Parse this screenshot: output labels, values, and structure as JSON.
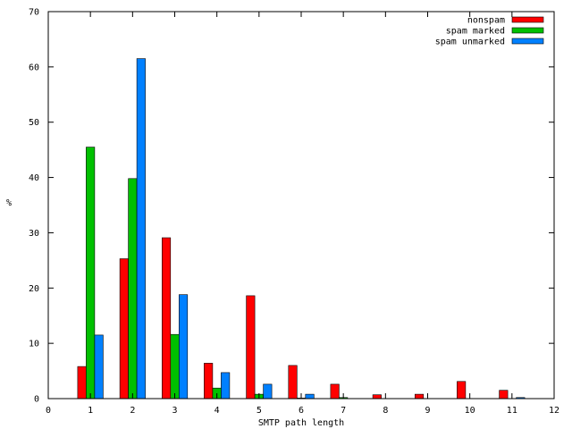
{
  "chart_data": {
    "type": "bar",
    "xlabel": "SMTP path length",
    "ylabel": "%",
    "xlim": [
      0,
      12
    ],
    "ylim": [
      0,
      70
    ],
    "xticks": [
      0,
      1,
      2,
      3,
      4,
      5,
      6,
      7,
      8,
      9,
      10,
      11,
      12
    ],
    "yticks": [
      0,
      10,
      20,
      30,
      40,
      50,
      60,
      70
    ],
    "grid": false,
    "legend_position": "top-right",
    "categories": [
      1,
      2,
      3,
      4,
      5,
      6,
      7,
      8,
      9,
      10,
      11
    ],
    "series": [
      {
        "name": "nonspam",
        "color": "#ff0000",
        "values": [
          5.8,
          25.3,
          29.1,
          6.4,
          18.6,
          6.0,
          2.6,
          0.7,
          0.8,
          3.1,
          1.5
        ]
      },
      {
        "name": "spam marked",
        "color": "#00c000",
        "values": [
          45.5,
          39.8,
          11.6,
          1.9,
          0.8,
          0.1,
          0.2,
          0,
          0,
          0,
          0
        ]
      },
      {
        "name": "spam unmarked",
        "color": "#0080ff",
        "values": [
          11.5,
          61.5,
          18.8,
          4.7,
          2.6,
          0.8,
          0,
          0,
          0,
          0,
          0.2
        ]
      }
    ]
  }
}
